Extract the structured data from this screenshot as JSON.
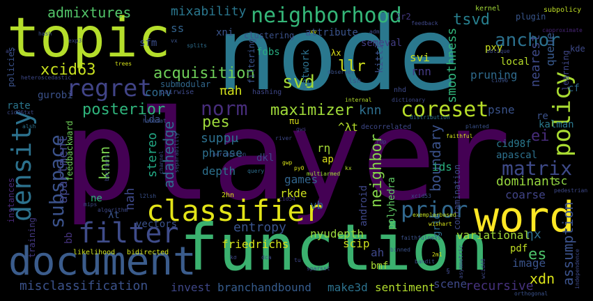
{
  "words": [
    {
      "text": "player",
      "color": "#440154"
    },
    {
      "text": "node",
      "color": "#2a788e"
    },
    {
      "text": "function",
      "color": "#3bb16f"
    },
    {
      "text": "topic",
      "color": "#b5de2b"
    },
    {
      "text": "word",
      "color": "#fde725"
    },
    {
      "text": "document",
      "color": "#3b5c8c"
    },
    {
      "text": "classifier",
      "color": "#e2e418"
    },
    {
      "text": "filter",
      "color": "#3f4c8a"
    },
    {
      "text": "density",
      "color": "#2c728e"
    },
    {
      "text": "regret",
      "color": "#414487"
    },
    {
      "text": "neighborhood",
      "color": "#35b779"
    },
    {
      "text": "coreset",
      "color": "#b8de29"
    },
    {
      "text": "policy",
      "color": "#aadc32"
    },
    {
      "text": "matrix",
      "color": "#3e4a89"
    },
    {
      "text": "prior",
      "color": "#31688e"
    },
    {
      "text": "subspace",
      "color": "#3b528b"
    },
    {
      "text": "anchor",
      "color": "#2c718e"
    },
    {
      "text": "norm",
      "color": "#472d7b"
    },
    {
      "text": "acquisition",
      "color": "#6ece58"
    },
    {
      "text": "posterior",
      "color": "#2fb47c"
    },
    {
      "text": "maximizer",
      "color": "#a0da39"
    },
    {
      "text": "xcid63",
      "color": "#c8e020"
    },
    {
      "text": "admixtures",
      "color": "#52c569"
    },
    {
      "text": "mixability",
      "color": "#2a778e"
    },
    {
      "text": "tsvd",
      "color": "#277f8e"
    },
    {
      "text": "svd",
      "color": "#a5db36"
    },
    {
      "text": "llr",
      "color": "#d0e11c"
    },
    {
      "text": "pes",
      "color": "#9dd93b"
    },
    {
      "text": "knn",
      "color": "#2e6f8e"
    },
    {
      "text": "suppμ",
      "color": "#2d708e"
    },
    {
      "text": "stereo",
      "color": "#22a884"
    },
    {
      "text": "adahedge",
      "color": "#2e6e8e"
    },
    {
      "text": "knnn",
      "color": "#7ad151"
    },
    {
      "text": "entropy",
      "color": "#3a548c"
    },
    {
      "text": "apartment",
      "color": "#414487"
    },
    {
      "text": "neighbor",
      "color": "#84d44b"
    },
    {
      "text": "boundary",
      "color": "#3b528b"
    },
    {
      "text": "smoothness",
      "color": "#31b57b"
    },
    {
      "text": "nearest",
      "color": "#3e4a89"
    },
    {
      "text": "queue",
      "color": "#38598c"
    },
    {
      "text": "dominant",
      "color": "#98d83e"
    },
    {
      "text": "variational",
      "color": "#a2da37"
    },
    {
      "text": "misclassification",
      "color": "#3b528b"
    },
    {
      "text": "branchandbound",
      "color": "#365c8d"
    },
    {
      "text": "make3d",
      "color": "#2c728e"
    },
    {
      "text": "sentiment",
      "color": "#b2dd2d"
    },
    {
      "text": "recursive",
      "color": "#46327e"
    },
    {
      "text": "scene",
      "color": "#3e4989"
    },
    {
      "text": "invest",
      "color": "#3f4788"
    },
    {
      "text": "friedrichs",
      "color": "#d8e219"
    },
    {
      "text": "nyudepth",
      "color": "#9bd93c"
    },
    {
      "text": "assumption",
      "color": "#3b528b"
    },
    {
      "text": "xdn",
      "color": "#dae319"
    },
    {
      "text": "es",
      "color": "#4ec36b"
    },
    {
      "text": "image",
      "color": "#3a538b"
    },
    {
      "text": "pdf",
      "color": "#c2df23"
    },
    {
      "text": "ηx",
      "color": "#2e6f8e"
    },
    {
      "text": "ah",
      "color": "#3f4889"
    },
    {
      "text": "bmf",
      "color": "#a8db34"
    },
    {
      "text": "scip",
      "color": "#ccdf1e"
    },
    {
      "text": "grid",
      "color": "#2f6c8e"
    },
    {
      "text": "kalman",
      "color": "#2a788e"
    },
    {
      "text": "coarse",
      "color": "#414487"
    },
    {
      "text": "ids",
      "color": "#2ab07f"
    },
    {
      "text": "games",
      "color": "#32658e"
    },
    {
      "text": "rkde",
      "color": "#cde11d"
    },
    {
      "text": "vb",
      "color": "#32648e"
    },
    {
      "text": "phrase",
      "color": "#2d708e"
    },
    {
      "text": "depth",
      "color": "#2d718e"
    },
    {
      "text": "dkl",
      "color": "#3f4889"
    },
    {
      "text": "rη",
      "color": "#a5db36"
    },
    {
      "text": "ap",
      "color": "#dde318"
    },
    {
      "text": "lda",
      "color": "#3b528b"
    },
    {
      "text": "conv",
      "color": "#2f6b8e"
    },
    {
      "text": "πah",
      "color": "#d2e21b"
    },
    {
      "text": "nah",
      "color": "#3e4989"
    },
    {
      "text": "ne",
      "color": "#2fb47c"
    },
    {
      "text": "λt",
      "color": "#3a548c"
    },
    {
      "text": "vectors",
      "color": "#3b528b"
    },
    {
      "text": "bb",
      "color": "#46337f"
    },
    {
      "text": "training",
      "color": "#443983"
    },
    {
      "text": "instances",
      "color": "#482878"
    },
    {
      "text": "gurobi",
      "color": "#3b528b"
    },
    {
      "text": "rate",
      "color": "#2a768e"
    },
    {
      "text": "feedbackward",
      "color": "#6ece58"
    },
    {
      "text": "pruning",
      "color": "#2f6b8e"
    },
    {
      "text": "psne",
      "color": "#3a538b"
    },
    {
      "text": "rnn",
      "color": "#443a83"
    },
    {
      "text": "svi",
      "color": "#cae11f"
    },
    {
      "text": "fobs",
      "color": "#27ad81"
    },
    {
      "text": "kitti",
      "color": "#3b528b"
    },
    {
      "text": "network",
      "color": "#2d718e"
    },
    {
      "text": "filtering",
      "color": "#3a548c"
    },
    {
      "text": "submodular",
      "color": "#31688e"
    },
    {
      "text": "pxy",
      "color": "#cae11f"
    },
    {
      "text": "local",
      "color": "#b8de29"
    },
    {
      "text": "kde",
      "color": "#3e4a89"
    },
    {
      "text": "learning",
      "color": "#3f4788"
    },
    {
      "text": "cf",
      "color": "#2f6c8e"
    },
    {
      "text": "re",
      "color": "#3b528b"
    },
    {
      "text": "ei",
      "color": "#472c7a"
    },
    {
      "text": "sc",
      "color": "#8ed645"
    },
    {
      "text": "cid98f",
      "color": "#2a788e"
    },
    {
      "text": "apascal",
      "color": "#2d718e"
    },
    {
      "text": "contamination",
      "color": "#3f4889"
    },
    {
      "text": "android",
      "color": "#3f4889"
    },
    {
      "text": "polyhedra",
      "color": "#5ec962"
    },
    {
      "text": "sfm",
      "color": "#3c4f8a"
    },
    {
      "text": "ss",
      "color": "#33638d"
    },
    {
      "text": "xni",
      "color": "#3a548c"
    },
    {
      "text": "semeval",
      "color": "#433e85"
    },
    {
      "text": "2r2",
      "color": "#443983"
    },
    {
      "text": "attribute",
      "color": "#3a548c"
    },
    {
      "text": "clustering",
      "color": "#3b528b"
    },
    {
      "text": "plugin",
      "color": "#39568c"
    },
    {
      "text": "kernel",
      "color": "#a2da37"
    },
    {
      "text": "subpolicy",
      "color": "#c0df25"
    },
    {
      "text": "feedback",
      "color": "#3f4889"
    },
    {
      "text": "capproximate",
      "color": "#482576"
    },
    {
      "text": "oblique",
      "color": "#3e4a89"
    },
    {
      "text": "cid96",
      "color": "#3b528b"
    },
    {
      "text": "xv",
      "color": "#cae11f"
    },
    {
      "text": "adm",
      "color": "#3e4a89"
    },
    {
      "text": "λx",
      "color": "#dfe318"
    },
    {
      "text": "observer",
      "color": "#3b528b"
    },
    {
      "text": "hashing",
      "color": "#3f4788"
    },
    {
      "text": "nhd",
      "color": "#3e4a89"
    },
    {
      "text": "lsh",
      "color": "#3b528b"
    },
    {
      "text": "internal",
      "color": "#b5de2b"
    },
    {
      "text": "dictionary",
      "color": "#3e4989"
    },
    {
      "text": "distribution",
      "color": "#2c728e"
    },
    {
      "text": "decorrelated",
      "color": "#3e4989"
    },
    {
      "text": "πu",
      "color": "#dde318"
    },
    {
      "text": "^λt",
      "color": "#b5de2b"
    },
    {
      "text": "hash",
      "color": "#3b528b"
    },
    {
      "text": "exp3",
      "color": "#3e4a89"
    },
    {
      "text": "vx",
      "color": "#3a548c"
    },
    {
      "text": "splits",
      "color": "#2e6e8e"
    },
    {
      "text": "trees",
      "color": "#d5e21a"
    },
    {
      "text": "acf",
      "color": "#3f4889"
    },
    {
      "text": "policies",
      "color": "#3b528b"
    },
    {
      "text": "heteroscedastic",
      "color": "#3e4989"
    },
    {
      "text": "pairwise",
      "color": "#3e4a89"
    },
    {
      "text": "cid96txt",
      "color": "#3e4989"
    },
    {
      "text": "alsh",
      "color": "#2d718e"
    },
    {
      "text": "habitat",
      "color": "#3b528b"
    },
    {
      "text": "gws",
      "color": "#443983"
    },
    {
      "text": "river",
      "color": "#3e4989"
    },
    {
      "text": "rdp",
      "color": "#3e4a89"
    },
    {
      "text": "gwp",
      "color": "#d8e219"
    },
    {
      "text": "py0",
      "color": "#dae319"
    },
    {
      "text": "query",
      "color": "#2e6e8e"
    },
    {
      "text": "perception",
      "color": "#3b528b"
    },
    {
      "text": "separability",
      "color": "#3e4989"
    },
    {
      "text": "channel",
      "color": "#3e4a89"
    },
    {
      "text": "barriers",
      "color": "#3f4889"
    },
    {
      "text": "planted",
      "color": "#3b528b"
    },
    {
      "text": "faithful",
      "color": "#d2e21b"
    },
    {
      "text": "multiarmed",
      "color": "#a2da37"
    },
    {
      "text": "pedestrian",
      "color": "#3e4989"
    },
    {
      "text": "kx",
      "color": "#b5de2b"
    },
    {
      "text": "2hn",
      "color": "#dde318"
    },
    {
      "text": "l2lsh",
      "color": "#3b528b"
    },
    {
      "text": "mips",
      "color": "#3e4a89"
    },
    {
      "text": "algorithm",
      "color": "#3e4989"
    },
    {
      "text": "cid54",
      "color": "#443983"
    },
    {
      "text": "xcid53",
      "color": "#3b528b"
    },
    {
      "text": "exemplarbased",
      "color": "#c2df23"
    },
    {
      "text": "wishart",
      "color": "#d5e21a"
    },
    {
      "text": "likelihood",
      "color": "#cde11d"
    },
    {
      "text": "bidirected",
      "color": "#d2e21b"
    },
    {
      "text": "faithfulness",
      "color": "#3b528b"
    },
    {
      "text": "kσ",
      "color": "#3e4a89"
    },
    {
      "text": "dca",
      "color": "#3e4989"
    },
    {
      "text": "binned",
      "color": "#3b528b"
    },
    {
      "text": "tu",
      "color": "#3f4889"
    },
    {
      "text": "sparsst",
      "color": "#3e4989"
    },
    {
      "text": "2m1",
      "color": "#d8e219"
    },
    {
      "text": "bandit",
      "color": "#3b528b"
    },
    {
      "text": "asymmetric",
      "color": "#3e4989"
    },
    {
      "text": "orthogonal",
      "color": "#3b528b"
    },
    {
      "text": "independence",
      "color": "#3e4a89"
    },
    {
      "text": "wcid48",
      "color": "#3f4889"
    },
    {
      "text": "§",
      "color": "#3e4989"
    }
  ]
}
